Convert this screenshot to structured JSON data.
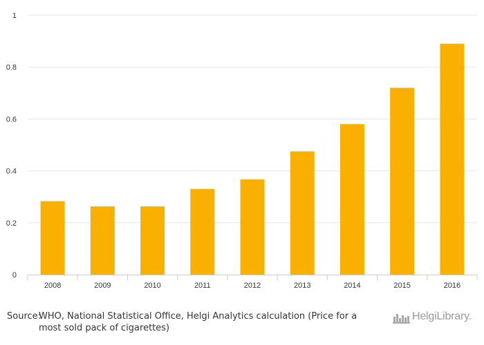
{
  "chart_data": {
    "type": "bar",
    "categories": [
      "2008",
      "2009",
      "2010",
      "2011",
      "2012",
      "2013",
      "2014",
      "2015",
      "2016"
    ],
    "values": [
      0.283,
      0.263,
      0.263,
      0.33,
      0.367,
      0.475,
      0.58,
      0.72,
      0.89
    ],
    "yticks": [
      "0",
      "0.2",
      "0.4",
      "0.6",
      "0.8",
      "1"
    ],
    "ylim": [
      0,
      1
    ],
    "grid": true,
    "bar_color": "#f9b000",
    "title": "",
    "xlabel": "",
    "ylabel": ""
  },
  "footer": {
    "source_label": "Source:",
    "source_text": "WHO, National Statistical Office, Helgi Analytics calculation (Price for a most sold pack of cigarettes)",
    "logo_text": "HelgiLibrary."
  }
}
